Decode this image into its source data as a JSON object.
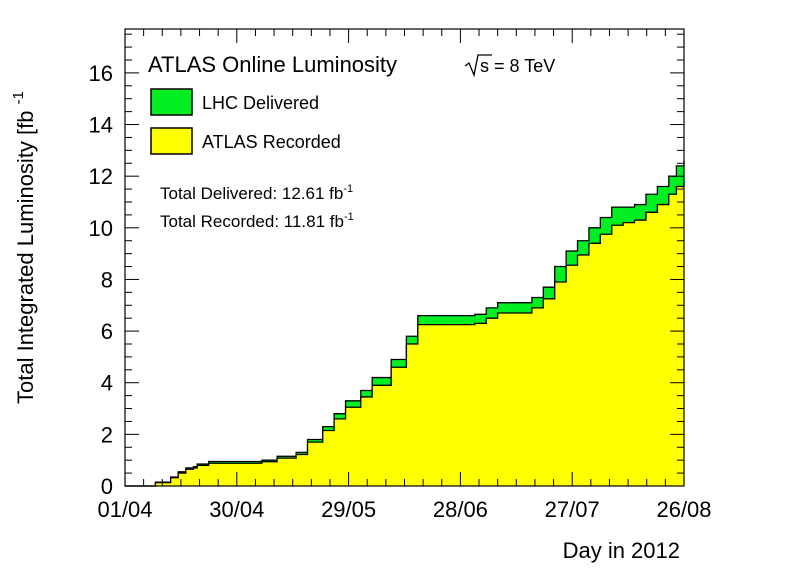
{
  "chart_data": {
    "type": "area",
    "title": "ATLAS Online Luminosity",
    "energy_label": "s = 8 TeV",
    "xlabel": "Day in 2012",
    "ylabel": "Total Integrated Luminosity [fb",
    "ylabel_exp": "-1",
    "x_ticks": [
      "01/04",
      "30/04",
      "29/05",
      "28/06",
      "27/07",
      "26/08"
    ],
    "xlim_days": [
      0,
      147
    ],
    "ylim": [
      0,
      17.7
    ],
    "y_ticks": [
      0,
      2,
      4,
      6,
      8,
      10,
      12,
      14,
      16
    ],
    "grid": false,
    "legend_position": "top-left",
    "legend": [
      {
        "name": "LHC Delivered",
        "color": "#00ee22"
      },
      {
        "name": "ATLAS Recorded",
        "color": "#ffff00"
      }
    ],
    "annotations": [
      {
        "prefix": "Total Delivered: 12.61 fb",
        "exp": "-1"
      },
      {
        "prefix": "Total Recorded: 11.81 fb",
        "exp": "-1"
      }
    ],
    "series": [
      {
        "name": "LHC Delivered",
        "color": "#00ee22",
        "x": [
          0,
          5,
          8,
          12,
          14,
          16,
          18,
          19,
          22,
          25,
          28,
          33,
          36,
          40,
          45,
          48,
          52,
          55,
          58,
          62,
          65,
          70,
          74,
          77,
          80,
          83,
          86,
          89,
          92,
          95,
          98,
          101,
          104,
          107,
          110,
          113,
          116,
          119,
          122,
          125,
          128,
          131,
          134,
          137,
          140,
          143,
          145,
          147
        ],
        "values": [
          0,
          0,
          0.15,
          0.35,
          0.55,
          0.7,
          0.75,
          0.85,
          0.95,
          0.95,
          0.95,
          0.95,
          1.0,
          1.15,
          1.3,
          1.8,
          2.3,
          2.8,
          3.3,
          3.7,
          4.2,
          4.9,
          5.8,
          6.6,
          6.6,
          6.6,
          6.6,
          6.6,
          6.65,
          6.9,
          7.1,
          7.1,
          7.1,
          7.3,
          7.7,
          8.5,
          9.1,
          9.5,
          10.0,
          10.4,
          10.8,
          10.8,
          10.9,
          11.3,
          11.6,
          12.0,
          12.4,
          12.61
        ]
      },
      {
        "name": "ATLAS Recorded",
        "color": "#ffff00",
        "x": [
          0,
          5,
          8,
          12,
          14,
          16,
          18,
          19,
          22,
          25,
          28,
          33,
          36,
          40,
          45,
          48,
          52,
          55,
          58,
          62,
          65,
          70,
          74,
          77,
          80,
          83,
          86,
          89,
          92,
          95,
          98,
          101,
          104,
          107,
          110,
          113,
          116,
          119,
          122,
          125,
          128,
          131,
          134,
          137,
          140,
          143,
          145,
          147
        ],
        "values": [
          0,
          0,
          0.13,
          0.32,
          0.5,
          0.65,
          0.7,
          0.8,
          0.88,
          0.88,
          0.88,
          0.88,
          0.94,
          1.08,
          1.22,
          1.7,
          2.15,
          2.6,
          3.05,
          3.45,
          3.9,
          4.6,
          5.5,
          6.25,
          6.25,
          6.25,
          6.25,
          6.25,
          6.3,
          6.5,
          6.7,
          6.7,
          6.7,
          6.9,
          7.25,
          7.9,
          8.55,
          8.95,
          9.4,
          9.75,
          10.1,
          10.2,
          10.3,
          10.6,
          10.9,
          11.3,
          11.6,
          11.81
        ]
      }
    ]
  }
}
